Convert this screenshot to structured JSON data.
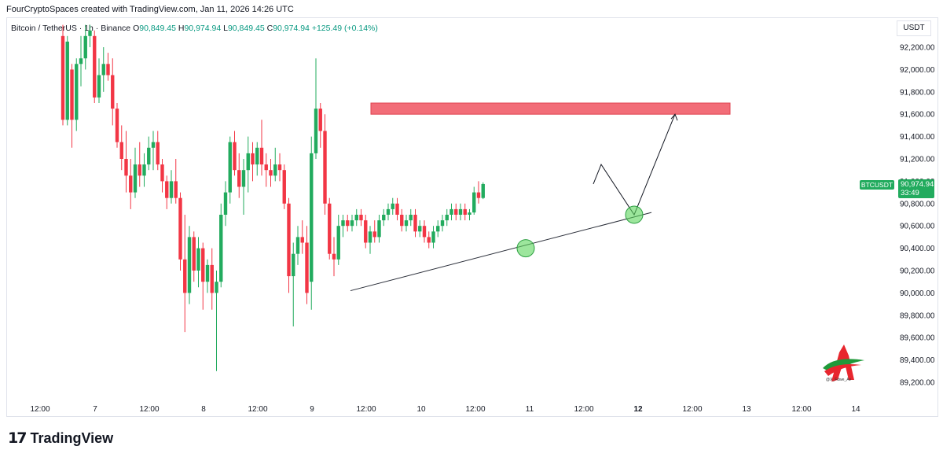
{
  "header": {
    "text": "FourCryptoSpaces created with TradingView.com, Jan 11, 2026 14:26 UTC"
  },
  "legend": {
    "symbol": "Bitcoin / TetherUS · 1h · Binance",
    "o_label": "O",
    "o_value": "90,849.45",
    "h_label": "H",
    "h_value": "90,974.94",
    "l_label": "L",
    "l_value": "90,849.45",
    "c_label": "C",
    "c_value": "90,974.94",
    "change": "+125.49 (+0.14%)"
  },
  "currency": "USDT",
  "last_price_tag": {
    "symbol": "BTCUSDT",
    "price": "90,974.94",
    "countdown": "33:49"
  },
  "footer": {
    "brand": "TradingView"
  },
  "watermark_label": "@X_Fdwe_Av",
  "colors": {
    "up": "#22ab5e",
    "down": "#f23645",
    "resistance_zone": "#f26d78",
    "circle": "#5cd65c"
  },
  "chart_data": {
    "type": "candlestick",
    "title": "Bitcoin / TetherUS · 1h · Binance",
    "ylim": [
      89100,
      92320
    ],
    "y_ticks": [
      "92,200.00",
      "92,000.00",
      "91,800.00",
      "91,600.00",
      "91,400.00",
      "91,200.00",
      "91,000.00",
      "90,800.00",
      "90,600.00",
      "90,400.00",
      "90,200.00",
      "90,000.00",
      "89,800.00",
      "89,600.00",
      "89,400.00",
      "89,200.00"
    ],
    "x_ticks": [
      "12:00",
      "7",
      "12:00",
      "8",
      "12:00",
      "9",
      "12:00",
      "10",
      "12:00",
      "11",
      "12:00",
      "12",
      "12:00",
      "13",
      "12:00",
      "14"
    ],
    "candles": [
      {
        "o": 92300,
        "h": 92400,
        "l": 91500,
        "c": 91550
      },
      {
        "o": 91550,
        "h": 92300,
        "l": 91500,
        "c": 92250
      },
      {
        "o": 92000,
        "h": 92050,
        "l": 91300,
        "c": 91550
      },
      {
        "o": 91550,
        "h": 92100,
        "l": 91450,
        "c": 92050
      },
      {
        "o": 92050,
        "h": 92300,
        "l": 91850,
        "c": 92100
      },
      {
        "o": 92100,
        "h": 92400,
        "l": 92000,
        "c": 92300
      },
      {
        "o": 92300,
        "h": 92400,
        "l": 92200,
        "c": 92350
      },
      {
        "o": 92300,
        "h": 92350,
        "l": 91700,
        "c": 91750
      },
      {
        "o": 91750,
        "h": 92100,
        "l": 91700,
        "c": 91950
      },
      {
        "o": 91950,
        "h": 92200,
        "l": 91800,
        "c": 92050
      },
      {
        "o": 92050,
        "h": 92150,
        "l": 91900,
        "c": 91950
      },
      {
        "o": 91950,
        "h": 92100,
        "l": 91500,
        "c": 91650
      },
      {
        "o": 91650,
        "h": 91700,
        "l": 91300,
        "c": 91350
      },
      {
        "o": 91350,
        "h": 91500,
        "l": 91100,
        "c": 91200
      },
      {
        "o": 91200,
        "h": 91450,
        "l": 90900,
        "c": 91050
      },
      {
        "o": 91050,
        "h": 91200,
        "l": 90750,
        "c": 90900
      },
      {
        "o": 90900,
        "h": 91300,
        "l": 90850,
        "c": 91150
      },
      {
        "o": 91150,
        "h": 91350,
        "l": 90950,
        "c": 91050
      },
      {
        "o": 91050,
        "h": 91250,
        "l": 90950,
        "c": 91150
      },
      {
        "o": 91150,
        "h": 91400,
        "l": 91100,
        "c": 91300
      },
      {
        "o": 91300,
        "h": 91450,
        "l": 91100,
        "c": 91350
      },
      {
        "o": 91350,
        "h": 91450,
        "l": 91100,
        "c": 91150
      },
      {
        "o": 91150,
        "h": 91200,
        "l": 90900,
        "c": 91000
      },
      {
        "o": 91000,
        "h": 91050,
        "l": 90750,
        "c": 90850
      },
      {
        "o": 90850,
        "h": 91100,
        "l": 90800,
        "c": 91000
      },
      {
        "o": 91000,
        "h": 91200,
        "l": 90800,
        "c": 90850
      },
      {
        "o": 90850,
        "h": 90900,
        "l": 90200,
        "c": 90300
      },
      {
        "o": 90300,
        "h": 90700,
        "l": 89650,
        "c": 90000
      },
      {
        "o": 90000,
        "h": 90600,
        "l": 89900,
        "c": 90500
      },
      {
        "o": 90500,
        "h": 90550,
        "l": 90100,
        "c": 90200
      },
      {
        "o": 90200,
        "h": 90500,
        "l": 90050,
        "c": 90400
      },
      {
        "o": 90400,
        "h": 90450,
        "l": 89850,
        "c": 90100
      },
      {
        "o": 90100,
        "h": 90300,
        "l": 90000,
        "c": 90250
      },
      {
        "o": 90250,
        "h": 90400,
        "l": 89850,
        "c": 90000
      },
      {
        "o": 90000,
        "h": 90200,
        "l": 89300,
        "c": 90100
      },
      {
        "o": 90100,
        "h": 90800,
        "l": 90050,
        "c": 90700
      },
      {
        "o": 90700,
        "h": 91000,
        "l": 90600,
        "c": 90900
      },
      {
        "o": 90900,
        "h": 91400,
        "l": 90800,
        "c": 91350
      },
      {
        "o": 91350,
        "h": 91450,
        "l": 91050,
        "c": 91100
      },
      {
        "o": 91100,
        "h": 91250,
        "l": 90850,
        "c": 90950
      },
      {
        "o": 90950,
        "h": 91200,
        "l": 90700,
        "c": 91100
      },
      {
        "o": 91100,
        "h": 91400,
        "l": 90900,
        "c": 91250
      },
      {
        "o": 91250,
        "h": 91350,
        "l": 91000,
        "c": 91150
      },
      {
        "o": 91150,
        "h": 91350,
        "l": 91050,
        "c": 91300
      },
      {
        "o": 91300,
        "h": 91550,
        "l": 91050,
        "c": 91150
      },
      {
        "o": 91150,
        "h": 91250,
        "l": 90950,
        "c": 91100
      },
      {
        "o": 91100,
        "h": 91200,
        "l": 90950,
        "c": 91050
      },
      {
        "o": 91050,
        "h": 91300,
        "l": 91000,
        "c": 91150
      },
      {
        "o": 91150,
        "h": 91250,
        "l": 91000,
        "c": 91100
      },
      {
        "o": 91100,
        "h": 91150,
        "l": 90750,
        "c": 90800
      },
      {
        "o": 90800,
        "h": 90850,
        "l": 90000,
        "c": 90150
      },
      {
        "o": 90150,
        "h": 90450,
        "l": 89700,
        "c": 90350
      },
      {
        "o": 90350,
        "h": 90600,
        "l": 90250,
        "c": 90500
      },
      {
        "o": 90500,
        "h": 90650,
        "l": 90350,
        "c": 90450
      },
      {
        "o": 90450,
        "h": 90600,
        "l": 89900,
        "c": 90000
      },
      {
        "o": 90100,
        "h": 91400,
        "l": 89850,
        "c": 91250
      },
      {
        "o": 91250,
        "h": 92100,
        "l": 91200,
        "c": 91650
      },
      {
        "o": 91650,
        "h": 91700,
        "l": 91300,
        "c": 91450
      },
      {
        "o": 91450,
        "h": 91600,
        "l": 90700,
        "c": 90800
      },
      {
        "o": 90800,
        "h": 90850,
        "l": 90300,
        "c": 90350
      },
      {
        "o": 90350,
        "h": 90500,
        "l": 90150,
        "c": 90300
      },
      {
        "o": 90300,
        "h": 90700,
        "l": 90250,
        "c": 90600
      },
      {
        "o": 90600,
        "h": 90700,
        "l": 90500,
        "c": 90650
      },
      {
        "o": 90650,
        "h": 90700,
        "l": 90550,
        "c": 90600
      },
      {
        "o": 90600,
        "h": 90700,
        "l": 90550,
        "c": 90650
      },
      {
        "o": 90650,
        "h": 90750,
        "l": 90600,
        "c": 90700
      },
      {
        "o": 90700,
        "h": 90750,
        "l": 90600,
        "c": 90650
      },
      {
        "o": 90650,
        "h": 90700,
        "l": 90400,
        "c": 90450
      },
      {
        "o": 90450,
        "h": 90600,
        "l": 90350,
        "c": 90550
      },
      {
        "o": 90550,
        "h": 90650,
        "l": 90450,
        "c": 90500
      },
      {
        "o": 90500,
        "h": 90700,
        "l": 90450,
        "c": 90650
      },
      {
        "o": 90650,
        "h": 90750,
        "l": 90600,
        "c": 90700
      },
      {
        "o": 90700,
        "h": 90800,
        "l": 90650,
        "c": 90750
      },
      {
        "o": 90750,
        "h": 90850,
        "l": 90700,
        "c": 90800
      },
      {
        "o": 90800,
        "h": 90850,
        "l": 90650,
        "c": 90700
      },
      {
        "o": 90700,
        "h": 90750,
        "l": 90550,
        "c": 90600
      },
      {
        "o": 90600,
        "h": 90700,
        "l": 90550,
        "c": 90650
      },
      {
        "o": 90650,
        "h": 90750,
        "l": 90600,
        "c": 90700
      },
      {
        "o": 90700,
        "h": 90750,
        "l": 90500,
        "c": 90550
      },
      {
        "o": 90550,
        "h": 90650,
        "l": 90500,
        "c": 90600
      },
      {
        "o": 90600,
        "h": 90650,
        "l": 90450,
        "c": 90500
      },
      {
        "o": 90500,
        "h": 90550,
        "l": 90400,
        "c": 90450
      },
      {
        "o": 90450,
        "h": 90600,
        "l": 90400,
        "c": 90550
      },
      {
        "o": 90550,
        "h": 90650,
        "l": 90500,
        "c": 90600
      },
      {
        "o": 90600,
        "h": 90700,
        "l": 90550,
        "c": 90650
      },
      {
        "o": 90650,
        "h": 90750,
        "l": 90600,
        "c": 90700
      },
      {
        "o": 90700,
        "h": 90800,
        "l": 90650,
        "c": 90750
      },
      {
        "o": 90750,
        "h": 90800,
        "l": 90650,
        "c": 90700
      },
      {
        "o": 90700,
        "h": 90800,
        "l": 90650,
        "c": 90750
      },
      {
        "o": 90750,
        "h": 90800,
        "l": 90650,
        "c": 90700
      },
      {
        "o": 90700,
        "h": 90750,
        "l": 90650,
        "c": 90720
      },
      {
        "o": 90720,
        "h": 90950,
        "l": 90700,
        "c": 90900
      },
      {
        "o": 90900,
        "h": 91000,
        "l": 90800,
        "c": 90850
      },
      {
        "o": 90850,
        "h": 90990,
        "l": 90840,
        "c": 90975
      }
    ],
    "annotations": {
      "resistance_zone": {
        "y_bottom": 91600,
        "y_top": 91700,
        "x_start_candle": 56,
        "x_end_candle": 136
      },
      "trendline": {
        "from": {
          "candle": 54,
          "price": 90020
        },
        "to": {
          "candle": 125,
          "price": 90720
        }
      },
      "projection_path": [
        {
          "candle": 94,
          "price": 90975
        },
        {
          "candle": 104,
          "price": 91150
        },
        {
          "candle": 118,
          "price": 90700
        },
        {
          "candle": 126,
          "price": 91600
        }
      ],
      "circles": [
        {
          "candle": 82,
          "price": 90400
        },
        {
          "candle": 118,
          "price": 90700
        }
      ]
    }
  }
}
